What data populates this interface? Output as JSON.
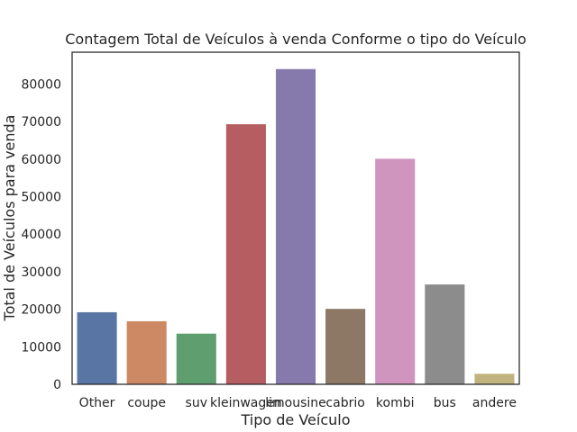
{
  "chart_data": {
    "type": "bar",
    "title": "Contagem Total de Veículos à venda Conforme o tipo do Veículo",
    "xlabel": "Tipo de Veículo",
    "ylabel": "Total de Veículos para venda",
    "categories": [
      "Other",
      "coupe",
      "suv",
      "kleinwagen",
      "limousine",
      "cabrio",
      "kombi",
      "bus",
      "andere"
    ],
    "values": [
      19200,
      16800,
      13500,
      69300,
      84000,
      20100,
      60100,
      26600,
      2800
    ],
    "colors": [
      "#5875a4",
      "#cc8963",
      "#5f9e6e",
      "#b55d60",
      "#857aab",
      "#8d7866",
      "#d095bf",
      "#8c8c8c",
      "#c1b37f"
    ],
    "ylim": [
      0,
      88500
    ],
    "yticks": [
      0,
      10000,
      20000,
      30000,
      40000,
      50000,
      60000,
      70000,
      80000
    ],
    "grid": false,
    "legend": "none"
  }
}
